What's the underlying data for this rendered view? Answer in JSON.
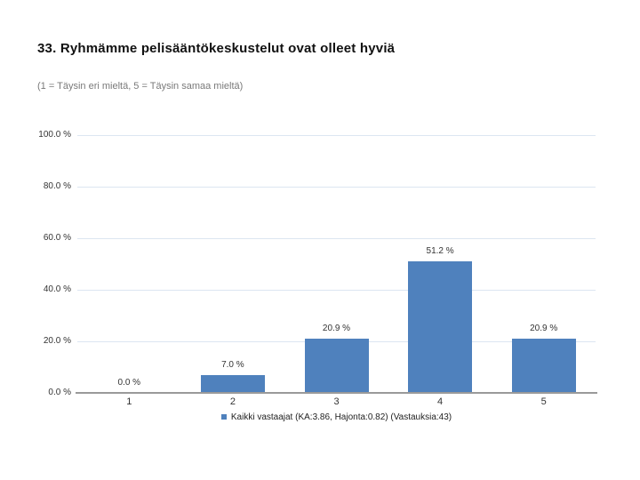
{
  "header": {
    "title": "33. Ryhmämme pelisääntökeskustelut ovat olleet hyviä",
    "subtitle": "(1 = Täysin eri mieltä, 5 = Täysin samaa mieltä)"
  },
  "chart_data": {
    "type": "bar",
    "title": "33. Ryhmämme pelisääntökeskustelut ovat olleet hyviä",
    "subtitle": "(1 = Täysin eri mieltä, 5 = Täysin samaa mieltä)",
    "categories": [
      "1",
      "2",
      "3",
      "4",
      "5"
    ],
    "values": [
      0.0,
      7.0,
      20.9,
      51.2,
      20.9
    ],
    "value_labels": [
      "0.0 %",
      "7.0 %",
      "20.9 %",
      "51.2 %",
      "20.9 %"
    ],
    "xlabel": "",
    "ylabel": "",
    "ylim": [
      0,
      100
    ],
    "y_ticks": [
      {
        "value": 100,
        "label": "100.0 %"
      },
      {
        "value": 80,
        "label": "80.0 %"
      },
      {
        "value": 60,
        "label": "60.0 %"
      },
      {
        "value": 40,
        "label": "40.0 %"
      },
      {
        "value": 20,
        "label": "20.0 %"
      },
      {
        "value": 0,
        "label": "0.0 %"
      }
    ],
    "grid": true,
    "legend_position": "bottom-center",
    "legend": {
      "entries": [
        {
          "label": "Kaikki vastaajat (KA:3.86, Hajonta:0.82) (Vastauksia:43)",
          "marker_color": "#4F81BD"
        }
      ]
    },
    "colors": {
      "bar": "#4F81BD",
      "gridline": "#dce6f1",
      "axis": "#9a9a9a",
      "title_text": "#111111",
      "subtitle_text": "#7a7a7a",
      "tick_text": "#333333"
    }
  }
}
